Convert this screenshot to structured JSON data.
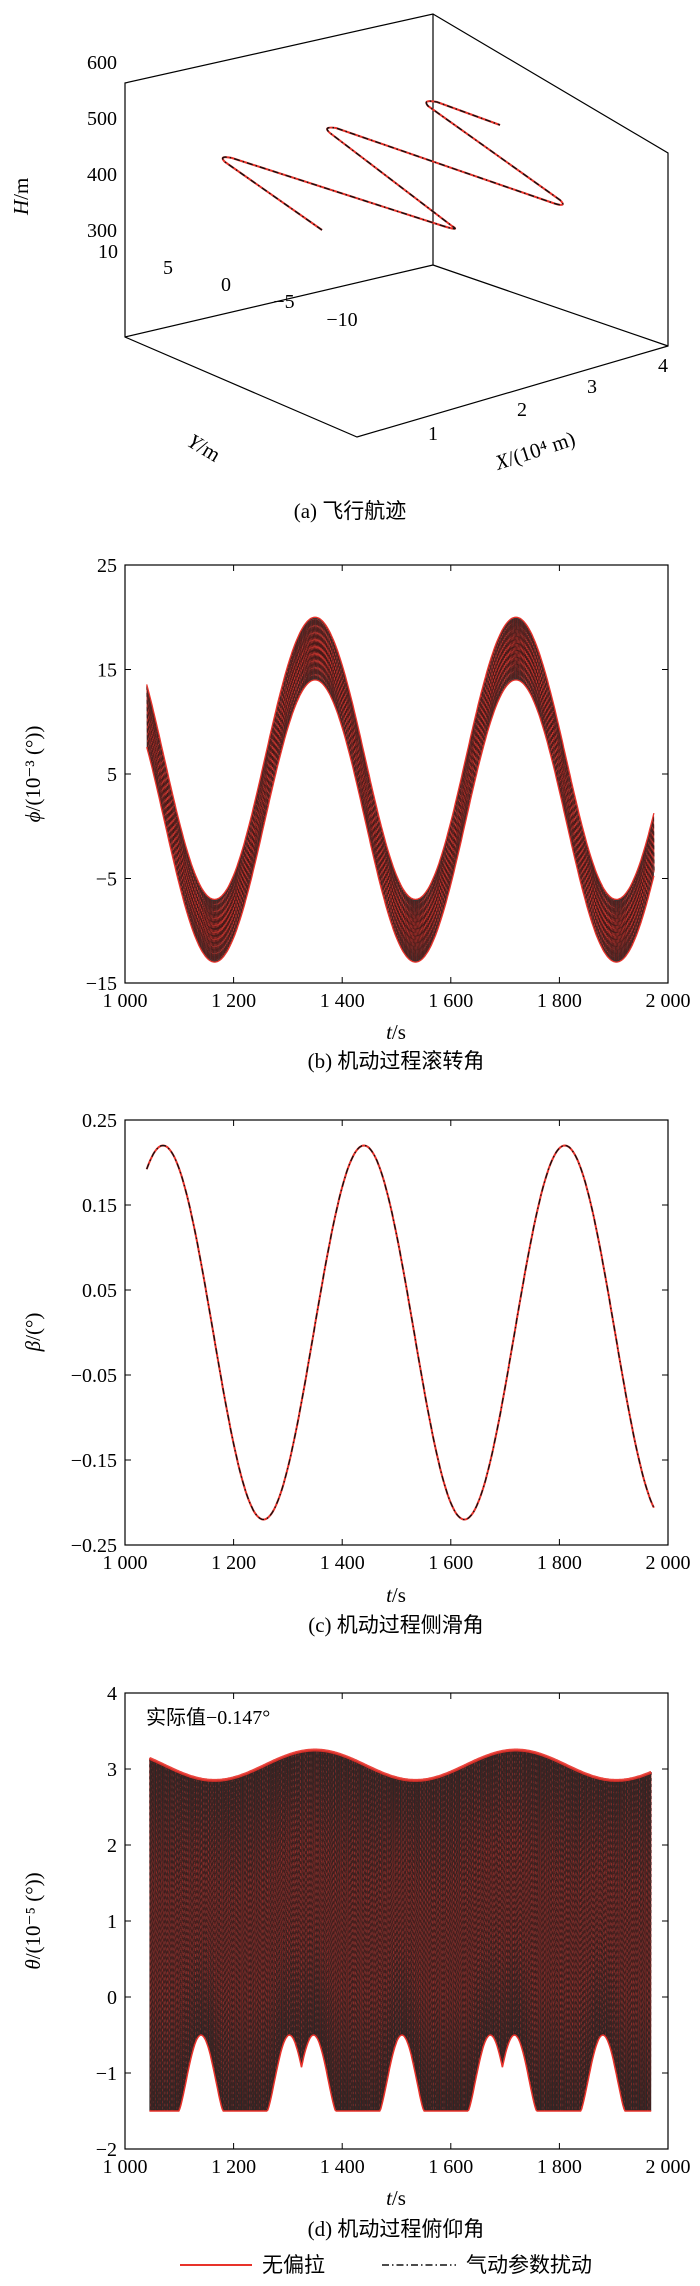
{
  "colors": {
    "no_bias": "#e8322a",
    "perturbed": "#111111"
  },
  "legend": {
    "no_bias": "无偏拉",
    "perturbed": "气动参数扰动"
  },
  "chart_data": [
    {
      "id": "a",
      "type": "line3d",
      "caption": "(a) 飞行航迹",
      "zlabel_var": "H",
      "zlabel_unit": "/m",
      "ylabel_var": "Y",
      "ylabel_unit": "/m",
      "xlabel_var": "X",
      "xlabel_unit": "/(10⁴ m)",
      "zticks": [
        "600",
        "500",
        "400",
        "300"
      ],
      "yticks": [
        "10",
        "5",
        "0",
        "−5",
        "−10"
      ],
      "xticks": [
        "1",
        "2",
        "3",
        "4"
      ]
    },
    {
      "id": "b",
      "type": "line",
      "caption": "(b) 机动过程滚转角",
      "ylabel_var": "ϕ",
      "ylabel_unit": "/(10⁻³ (°))",
      "xlabel_var": "t",
      "xlabel_unit": "/s",
      "xlim": [
        1000,
        2000
      ],
      "ylim": [
        -15,
        25
      ],
      "xticks": [
        "1 000",
        "1 200",
        "1 400",
        "1 600",
        "1 800",
        "2 000"
      ],
      "yticks": [
        "25",
        "15",
        "5",
        "−5",
        "−15"
      ],
      "t_range": [
        1040,
        1975
      ],
      "center": {
        "mean": 3.5,
        "amp": 13.5,
        "period": 370,
        "peak_t": 1350
      },
      "band_halfwidth": 3.0
    },
    {
      "id": "c",
      "type": "line",
      "caption": "(c) 机动过程侧滑角",
      "ylabel_var": "β",
      "ylabel_unit": "/(°)",
      "xlabel_var": "t",
      "xlabel_unit": "/s",
      "xlim": [
        1000,
        2000
      ],
      "ylim": [
        -0.25,
        0.25
      ],
      "xticks": [
        "1 000",
        "1 200",
        "1 400",
        "1 600",
        "1 800",
        "2 000"
      ],
      "yticks": [
        "0.25",
        "0.15",
        "0.05",
        "−0.05",
        "−0.15",
        "−0.25"
      ],
      "t_range": [
        1040,
        1975
      ],
      "center": {
        "mean": 0,
        "amp": 0.22,
        "period": 370,
        "peak_t": 1440
      }
    },
    {
      "id": "d",
      "type": "line",
      "caption": "(d) 机动过程俯仰角",
      "annotation": "实际值−0.147°",
      "ylabel_var": "θ",
      "ylabel_unit": "/(10⁻⁵ (°))",
      "xlabel_var": "t",
      "xlabel_unit": "/s",
      "xlim": [
        1000,
        2000
      ],
      "ylim": [
        -2,
        4
      ],
      "xticks": [
        "1 000",
        "1 200",
        "1 400",
        "1 600",
        "1 800",
        "2 000"
      ],
      "yticks": [
        "4",
        "3",
        "2",
        "1",
        "0",
        "−1",
        "−2"
      ],
      "t_range": [
        1045,
        1970
      ],
      "upper": {
        "mean": 3.05,
        "amp": 0.2,
        "period": 370,
        "peak_t": 1350
      },
      "lower": {
        "mean": -1.5,
        "bump": 1.0,
        "period": 370,
        "peak_t": 1140
      }
    }
  ]
}
